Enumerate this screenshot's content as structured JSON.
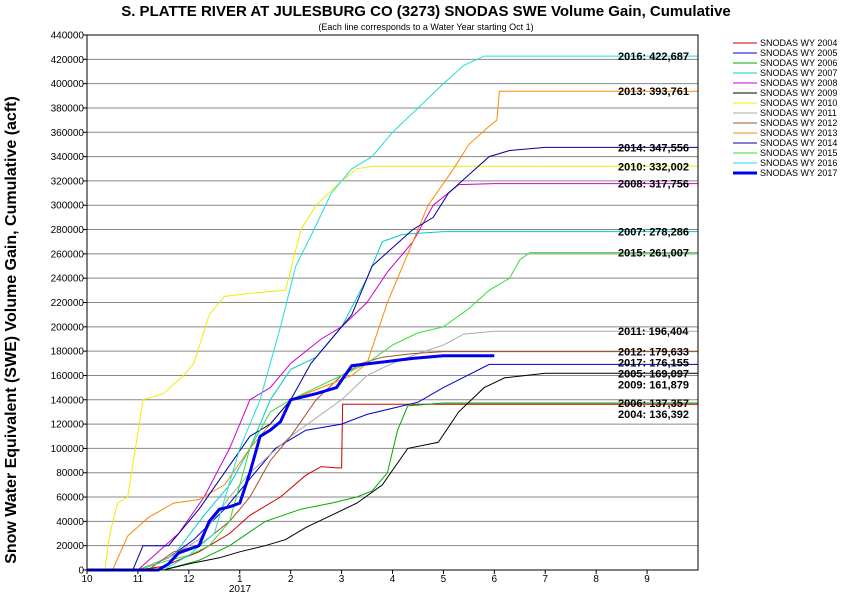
{
  "chart_data": {
    "type": "line",
    "title": "S. PLATTE RIVER AT JULESBURG CO (3273) SNODAS SWE Volume Gain, Cumulative",
    "subtitle": "(Each line corresponds to a Water Year starting Oct 1)",
    "ylabel": "Snow Water Equivalent (SWE) Volume Gain, Cumulative (acft)",
    "xlabel": "",
    "x_tick_labels": [
      "10",
      "11",
      "12",
      "1",
      "2",
      "3",
      "4",
      "5",
      "6",
      "7",
      "8",
      "9"
    ],
    "x_year_label": "2017",
    "xlim": [
      0,
      12
    ],
    "ylim": [
      0,
      440000
    ],
    "y_ticks": [
      0,
      20000,
      40000,
      60000,
      80000,
      100000,
      120000,
      140000,
      160000,
      180000,
      200000,
      220000,
      240000,
      260000,
      280000,
      300000,
      320000,
      340000,
      360000,
      380000,
      400000,
      420000,
      440000
    ],
    "grid": true,
    "legend_position": "right",
    "series": [
      {
        "name": "SNODAS WY 2004",
        "color": "#cc0000",
        "width": 1,
        "end_label": "2004: 136,392",
        "points": [
          [
            0,
            0
          ],
          [
            1.0,
            0
          ],
          [
            1.5,
            3000
          ],
          [
            2.2,
            15000
          ],
          [
            2.8,
            30000
          ],
          [
            3.2,
            45000
          ],
          [
            3.8,
            60000
          ],
          [
            4.3,
            78000
          ],
          [
            4.6,
            85000
          ],
          [
            4.9,
            84000
          ],
          [
            5.0,
            84000
          ],
          [
            5.02,
            136392
          ],
          [
            12,
            136392
          ]
        ]
      },
      {
        "name": "SNODAS WY 2005",
        "color": "#0000cc",
        "width": 1,
        "end_label": "2005: 169,097",
        "points": [
          [
            0,
            0
          ],
          [
            1.0,
            0
          ],
          [
            1.6,
            10000
          ],
          [
            2.1,
            25000
          ],
          [
            2.7,
            50000
          ],
          [
            3.2,
            75000
          ],
          [
            3.7,
            100000
          ],
          [
            4.3,
            115000
          ],
          [
            5.0,
            120000
          ],
          [
            5.5,
            128000
          ],
          [
            6.5,
            138000
          ],
          [
            7.0,
            150000
          ],
          [
            7.9,
            169097
          ],
          [
            12,
            169097
          ]
        ]
      },
      {
        "name": "SNODAS WY 2006",
        "color": "#00aa00",
        "width": 1,
        "end_label": "2006: 137,357",
        "points": [
          [
            0,
            0
          ],
          [
            1.5,
            0
          ],
          [
            2.2,
            8000
          ],
          [
            2.8,
            20000
          ],
          [
            3.5,
            40000
          ],
          [
            4.2,
            50000
          ],
          [
            4.8,
            55000
          ],
          [
            5.3,
            60000
          ],
          [
            5.6,
            65000
          ],
          [
            5.9,
            80000
          ],
          [
            6.1,
            115000
          ],
          [
            6.3,
            135000
          ],
          [
            7.0,
            137357
          ],
          [
            12,
            137357
          ]
        ]
      },
      {
        "name": "SNODAS WY 2007",
        "color": "#00cccc",
        "width": 1,
        "end_label": "2007: 278,286",
        "points": [
          [
            0,
            0
          ],
          [
            1.0,
            0
          ],
          [
            1.7,
            12000
          ],
          [
            2.3,
            45000
          ],
          [
            2.8,
            70000
          ],
          [
            3.2,
            100000
          ],
          [
            3.6,
            140000
          ],
          [
            4.0,
            165000
          ],
          [
            4.5,
            175000
          ],
          [
            5.0,
            200000
          ],
          [
            5.5,
            240000
          ],
          [
            5.8,
            270000
          ],
          [
            6.2,
            276000
          ],
          [
            7.0,
            278286
          ],
          [
            12,
            278286
          ]
        ]
      },
      {
        "name": "SNODAS WY 2008",
        "color": "#cc00cc",
        "width": 1,
        "end_label": "2008: 317,756",
        "points": [
          [
            0,
            0
          ],
          [
            1.0,
            0
          ],
          [
            1.8,
            30000
          ],
          [
            2.3,
            60000
          ],
          [
            2.8,
            100000
          ],
          [
            3.2,
            140000
          ],
          [
            3.6,
            150000
          ],
          [
            4.0,
            170000
          ],
          [
            4.6,
            190000
          ],
          [
            5.0,
            200000
          ],
          [
            5.5,
            220000
          ],
          [
            5.9,
            245000
          ],
          [
            6.4,
            270000
          ],
          [
            6.8,
            300000
          ],
          [
            7.3,
            317000
          ],
          [
            8.0,
            317756
          ],
          [
            12,
            317756
          ]
        ]
      },
      {
        "name": "SNODAS WY 2009",
        "color": "#000000",
        "width": 1,
        "end_label": "2009: 161,879",
        "points": [
          [
            0,
            0
          ],
          [
            1.5,
            0
          ],
          [
            2.0,
            5000
          ],
          [
            2.6,
            10000
          ],
          [
            3.0,
            15000
          ],
          [
            3.5,
            20000
          ],
          [
            3.9,
            25000
          ],
          [
            4.3,
            35000
          ],
          [
            4.8,
            45000
          ],
          [
            5.3,
            55000
          ],
          [
            5.8,
            70000
          ],
          [
            6.3,
            100000
          ],
          [
            6.9,
            105000
          ],
          [
            7.3,
            130000
          ],
          [
            7.8,
            150000
          ],
          [
            8.2,
            158000
          ],
          [
            9.0,
            161879
          ],
          [
            12,
            161879
          ]
        ]
      },
      {
        "name": "SNODAS WY 2010",
        "color": "#eeee00",
        "width": 1,
        "end_label": "2010: 332,002",
        "points": [
          [
            0,
            0
          ],
          [
            0.35,
            0
          ],
          [
            0.45,
            30000
          ],
          [
            0.6,
            55000
          ],
          [
            0.8,
            60000
          ],
          [
            0.95,
            100000
          ],
          [
            1.1,
            140000
          ],
          [
            1.5,
            145000
          ],
          [
            1.9,
            160000
          ],
          [
            2.1,
            170000
          ],
          [
            2.4,
            210000
          ],
          [
            2.7,
            225000
          ],
          [
            3.3,
            228000
          ],
          [
            3.9,
            230000
          ],
          [
            4.2,
            280000
          ],
          [
            4.5,
            300000
          ],
          [
            5.0,
            320000
          ],
          [
            5.3,
            330000
          ],
          [
            5.6,
            332002
          ],
          [
            12,
            332002
          ]
        ]
      },
      {
        "name": "SNODAS WY 2011",
        "color": "#aaaaaa",
        "width": 1,
        "end_label": "2011: 196,404",
        "points": [
          [
            0,
            0
          ],
          [
            1.0,
            0
          ],
          [
            1.6,
            10000
          ],
          [
            2.2,
            25000
          ],
          [
            2.8,
            60000
          ],
          [
            3.2,
            80000
          ],
          [
            3.6,
            95000
          ],
          [
            4.0,
            110000
          ],
          [
            4.5,
            125000
          ],
          [
            5.0,
            140000
          ],
          [
            5.5,
            160000
          ],
          [
            6.0,
            170000
          ],
          [
            6.5,
            178000
          ],
          [
            7.0,
            185000
          ],
          [
            7.4,
            194000
          ],
          [
            8.0,
            196404
          ],
          [
            12,
            196404
          ]
        ]
      },
      {
        "name": "SNODAS WY 2012",
        "color": "#a0522d",
        "width": 1,
        "end_label": "2012: 179,633",
        "points": [
          [
            0,
            0
          ],
          [
            1.2,
            0
          ],
          [
            1.7,
            15000
          ],
          [
            2.2,
            20000
          ],
          [
            2.8,
            40000
          ],
          [
            3.2,
            60000
          ],
          [
            3.6,
            90000
          ],
          [
            4.0,
            110000
          ],
          [
            4.5,
            140000
          ],
          [
            5.0,
            160000
          ],
          [
            5.4,
            170000
          ],
          [
            5.8,
            175000
          ],
          [
            6.4,
            178000
          ],
          [
            7.0,
            179633
          ],
          [
            12,
            179633
          ]
        ]
      },
      {
        "name": "SNODAS WY 2013",
        "color": "#ff8800",
        "width": 1,
        "end_label": "2013: 393,761",
        "points": [
          [
            0,
            0
          ],
          [
            0.5,
            0
          ],
          [
            0.8,
            28000
          ],
          [
            1.2,
            43000
          ],
          [
            1.7,
            55000
          ],
          [
            2.2,
            58000
          ],
          [
            2.7,
            70000
          ],
          [
            3.2,
            100000
          ],
          [
            3.6,
            120000
          ],
          [
            4.0,
            140000
          ],
          [
            4.6,
            150000
          ],
          [
            5.2,
            160000
          ],
          [
            5.5,
            170000
          ],
          [
            5.9,
            220000
          ],
          [
            6.3,
            260000
          ],
          [
            6.7,
            300000
          ],
          [
            7.2,
            330000
          ],
          [
            7.5,
            350000
          ],
          [
            7.9,
            365000
          ],
          [
            8.05,
            370000
          ],
          [
            8.1,
            393761
          ],
          [
            12,
            393761
          ]
        ]
      },
      {
        "name": "SNODAS WY 2014",
        "color": "#000099",
        "width": 1,
        "end_label": "2014: 347,556",
        "points": [
          [
            0,
            0
          ],
          [
            0.9,
            0
          ],
          [
            1.1,
            20000
          ],
          [
            1.6,
            20000
          ],
          [
            2.2,
            50000
          ],
          [
            2.7,
            80000
          ],
          [
            3.2,
            110000
          ],
          [
            3.6,
            120000
          ],
          [
            4.0,
            140000
          ],
          [
            4.4,
            170000
          ],
          [
            4.8,
            190000
          ],
          [
            5.2,
            210000
          ],
          [
            5.6,
            250000
          ],
          [
            6.0,
            265000
          ],
          [
            6.4,
            280000
          ],
          [
            6.8,
            290000
          ],
          [
            7.1,
            310000
          ],
          [
            7.5,
            325000
          ],
          [
            7.9,
            340000
          ],
          [
            8.3,
            345000
          ],
          [
            9.0,
            347556
          ],
          [
            12,
            347556
          ]
        ]
      },
      {
        "name": "SNODAS WY 2015",
        "color": "#33dd33",
        "width": 1,
        "end_label": "2015: 261,007",
        "points": [
          [
            0,
            0
          ],
          [
            1.0,
            0
          ],
          [
            1.6,
            8000
          ],
          [
            2.0,
            12000
          ],
          [
            2.4,
            20000
          ],
          [
            2.8,
            40000
          ],
          [
            3.2,
            100000
          ],
          [
            3.6,
            130000
          ],
          [
            4.0,
            140000
          ],
          [
            4.5,
            150000
          ],
          [
            5.0,
            160000
          ],
          [
            5.5,
            170000
          ],
          [
            6.0,
            185000
          ],
          [
            6.5,
            195000
          ],
          [
            7.0,
            200000
          ],
          [
            7.5,
            215000
          ],
          [
            7.9,
            230000
          ],
          [
            8.3,
            240000
          ],
          [
            8.5,
            255000
          ],
          [
            8.7,
            261007
          ],
          [
            12,
            261007
          ]
        ]
      },
      {
        "name": "SNODAS WY 2016",
        "color": "#22dddd",
        "width": 1,
        "end_label": "2016: 422,687",
        "points": [
          [
            0,
            0
          ],
          [
            1.5,
            0
          ],
          [
            2.0,
            12000
          ],
          [
            2.5,
            30000
          ],
          [
            3.0,
            100000
          ],
          [
            3.4,
            140000
          ],
          [
            3.8,
            200000
          ],
          [
            4.1,
            250000
          ],
          [
            4.4,
            275000
          ],
          [
            4.8,
            310000
          ],
          [
            5.2,
            330000
          ],
          [
            5.6,
            340000
          ],
          [
            6.0,
            360000
          ],
          [
            6.5,
            380000
          ],
          [
            7.0,
            400000
          ],
          [
            7.4,
            415000
          ],
          [
            7.8,
            422687
          ],
          [
            12,
            422687
          ]
        ]
      },
      {
        "name": "SNODAS WY 2017",
        "color": "#0000ee",
        "width": 3,
        "end_label": "2017: 176,155",
        "points": [
          [
            0,
            0
          ],
          [
            1.0,
            0
          ],
          [
            1.4,
            0
          ],
          [
            1.6,
            5000
          ],
          [
            1.8,
            14000
          ],
          [
            2.0,
            17000
          ],
          [
            2.2,
            20000
          ],
          [
            2.4,
            40000
          ],
          [
            2.6,
            50000
          ],
          [
            2.8,
            52000
          ],
          [
            3.0,
            55000
          ],
          [
            3.2,
            80000
          ],
          [
            3.4,
            110000
          ],
          [
            3.6,
            115000
          ],
          [
            3.8,
            122000
          ],
          [
            4.0,
            140000
          ],
          [
            4.5,
            145000
          ],
          [
            4.9,
            150000
          ],
          [
            5.2,
            168000
          ],
          [
            5.6,
            170000
          ],
          [
            6.0,
            172000
          ],
          [
            6.4,
            174000
          ],
          [
            7.0,
            176155
          ],
          [
            8.0,
            176155
          ]
        ]
      }
    ]
  }
}
